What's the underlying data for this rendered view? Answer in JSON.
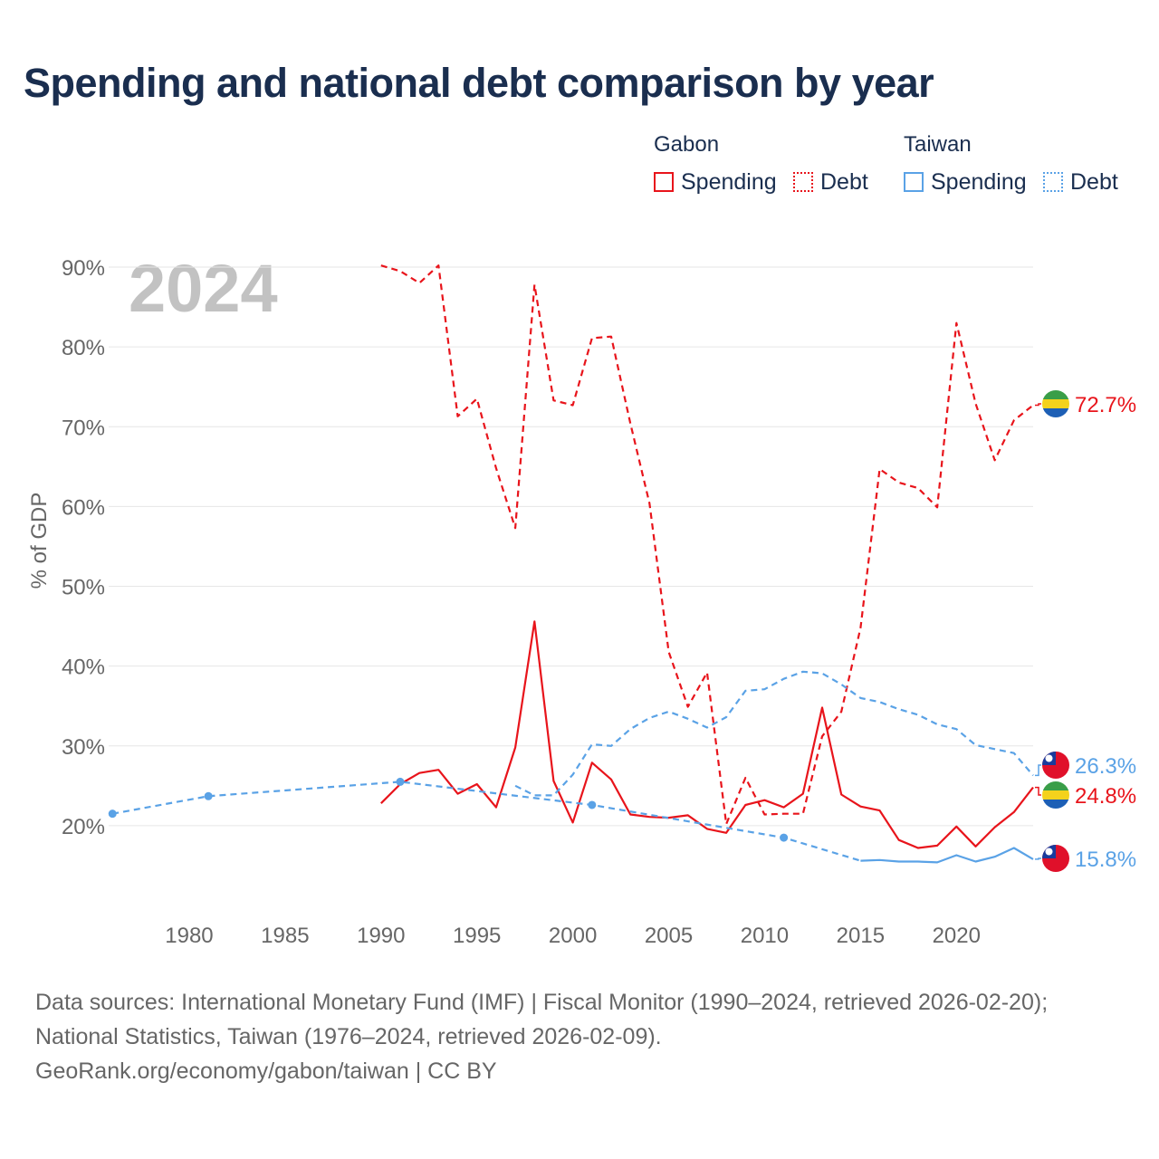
{
  "page": {
    "title": "Spending and national debt comparison by year",
    "year_label": "2024",
    "footer": {
      "line1": "Data sources: International Monetary Fund (IMF) | Fiscal Monitor (1990–2024, retrieved 2026-02-20);",
      "line2": "National Statistics, Taiwan (1976–2024, retrieved 2026-02-09).",
      "line3": "GeoRank.org/economy/gabon/taiwan | CC BY"
    }
  },
  "legend": {
    "gabon": {
      "title": "Gabon",
      "spending": "Spending",
      "debt": "Debt",
      "color": "#e8141b"
    },
    "taiwan": {
      "title": "Taiwan",
      "spending": "Spending",
      "debt": "Debt",
      "color": "#5aa2e6"
    }
  },
  "chart_data": {
    "type": "line",
    "title": "Spending and national debt comparison by year",
    "ylabel": "% of GDP",
    "xlabel": "",
    "xlim": [
      1975.8,
      2024
    ],
    "ylim": [
      10,
      90
    ],
    "x_ticks": [
      1980,
      1985,
      1990,
      1995,
      2000,
      2005,
      2010,
      2015,
      2020
    ],
    "x_tick_labels": [
      "1980",
      "1985",
      "1990",
      "1995",
      "2000",
      "2005",
      "2010",
      "2015",
      "2020"
    ],
    "y_ticks": [
      20,
      30,
      40,
      50,
      60,
      70,
      80,
      90
    ],
    "y_tick_labels": [
      "20%",
      "30%",
      "40%",
      "50%",
      "60%",
      "70%",
      "80%",
      "90%"
    ],
    "end_labels": [
      {
        "series": "Gabon Debt",
        "text": "72.7%",
        "flag": "gabon"
      },
      {
        "series": "Taiwan Debt",
        "text": "26.3%",
        "flag": "taiwan"
      },
      {
        "series": "Gabon Spending",
        "text": "24.8%",
        "flag": "gabon"
      },
      {
        "series": "Taiwan Spending",
        "text": "15.8%",
        "flag": "taiwan"
      }
    ],
    "series": [
      {
        "name": "Gabon Debt",
        "color": "#e8141b",
        "dash": true,
        "x": [
          1990,
          1991,
          1992,
          1993,
          1994,
          1995,
          1996,
          1997,
          1998,
          1999,
          2000,
          2001,
          2002,
          2003,
          2004,
          2005,
          2006,
          2007,
          2008,
          2009,
          2010,
          2011,
          2012,
          2013,
          2014,
          2015,
          2016,
          2017,
          2018,
          2019,
          2020,
          2021,
          2022,
          2023,
          2024
        ],
        "values": [
          90.2,
          89.5,
          88.0,
          90.2,
          71.3,
          73.5,
          64.8,
          57.3,
          87.8,
          73.3,
          72.7,
          81.1,
          81.3,
          70.4,
          60.4,
          41.8,
          34.9,
          39.2,
          20.2,
          26.0,
          21.4,
          21.5,
          21.5,
          31.2,
          34.3,
          44.8,
          64.7,
          63.0,
          62.3,
          59.9,
          83.0,
          72.9,
          65.8,
          70.8,
          72.7
        ]
      },
      {
        "name": "Gabon Spending",
        "color": "#e8141b",
        "dash": false,
        "x": [
          1990,
          1991,
          1992,
          1993,
          1994,
          1995,
          1996,
          1997,
          1998,
          1999,
          2000,
          2001,
          2002,
          2003,
          2004,
          2005,
          2006,
          2007,
          2008,
          2009,
          2010,
          2011,
          2012,
          2013,
          2014,
          2015,
          2016,
          2017,
          2018,
          2019,
          2020,
          2021,
          2022,
          2023,
          2024
        ],
        "values": [
          22.8,
          25.2,
          26.6,
          27.0,
          24.0,
          25.2,
          22.3,
          29.8,
          45.6,
          25.6,
          20.4,
          27.9,
          25.8,
          21.4,
          21.1,
          21.0,
          21.3,
          19.6,
          19.1,
          22.6,
          23.2,
          22.3,
          24.0,
          34.8,
          23.9,
          22.4,
          21.9,
          18.2,
          17.2,
          17.5,
          19.9,
          17.4,
          19.8,
          21.7,
          24.8
        ]
      },
      {
        "name": "Taiwan Debt",
        "color": "#5aa2e6",
        "dash": true,
        "x": [
          1997,
          1998,
          1999,
          2000,
          2001,
          2002,
          2003,
          2004,
          2005,
          2006,
          2007,
          2008,
          2009,
          2010,
          2011,
          2012,
          2013,
          2014,
          2015,
          2016,
          2017,
          2018,
          2019,
          2020,
          2021,
          2022,
          2023,
          2024
        ],
        "values": [
          25.0,
          23.8,
          23.8,
          26.4,
          30.2,
          30.0,
          32.1,
          33.5,
          34.3,
          33.4,
          32.3,
          33.6,
          36.9,
          37.1,
          38.4,
          39.3,
          39.1,
          37.7,
          36.0,
          35.5,
          34.6,
          33.9,
          32.7,
          32.1,
          30.1,
          29.6,
          29.1,
          26.3
        ]
      },
      {
        "name": "Taiwan Spending",
        "color": "#5aa2e6",
        "dash": false,
        "x": [
          2015,
          2016,
          2017,
          2018,
          2019,
          2020,
          2021,
          2022,
          2023,
          2024
        ],
        "values": [
          15.6,
          15.7,
          15.5,
          15.5,
          15.4,
          16.3,
          15.5,
          16.1,
          17.2,
          15.8
        ]
      },
      {
        "name": "Taiwan Spending (sparse, interpolated)",
        "color": "#5aa2e6",
        "dash": true,
        "x": [
          1976,
          1981,
          1991,
          2001,
          2011,
          2015
        ],
        "values": [
          21.5,
          23.7,
          25.5,
          22.6,
          18.5,
          15.6
        ],
        "markers": [
          1976,
          1981,
          1991,
          2001,
          2011
        ]
      }
    ]
  }
}
